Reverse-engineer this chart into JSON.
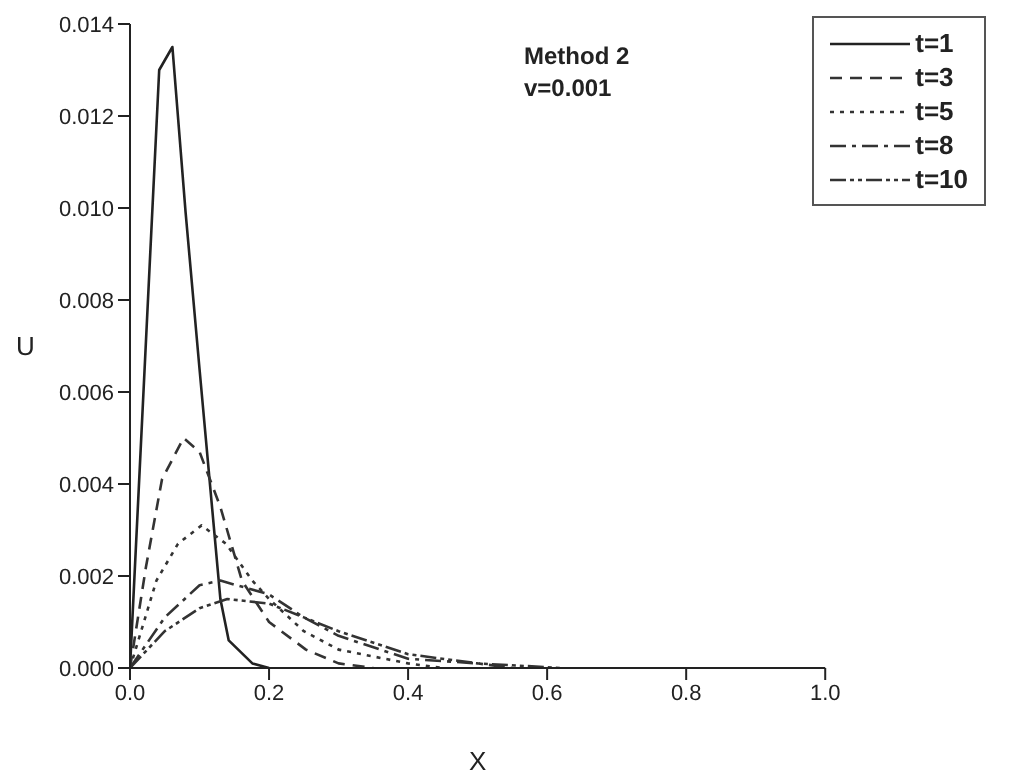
{
  "chart_data": {
    "type": "line",
    "xlabel": "X",
    "ylabel": "U",
    "annotations": [
      "Method 2",
      "v=0.001"
    ],
    "xlim": [
      0,
      1
    ],
    "xticks": [
      {
        "value": 0,
        "label": "0.0"
      },
      {
        "value": 0.2,
        "label": "0.2"
      },
      {
        "value": 0.4,
        "label": "0.4"
      },
      {
        "value": 0.6,
        "label": "0.6"
      },
      {
        "value": 0.8,
        "label": "0.8"
      },
      {
        "value": 1,
        "label": "1.0"
      }
    ],
    "ylim": [
      0,
      0.014
    ],
    "yticks": [
      {
        "value": 0,
        "label": "0.000"
      },
      {
        "value": 0.002,
        "label": "0.002"
      },
      {
        "value": 0.004,
        "label": "0.004"
      },
      {
        "value": 0.006,
        "label": "0.006"
      },
      {
        "value": 0.008,
        "label": "0.008"
      },
      {
        "value": 0.01,
        "label": "0.010"
      },
      {
        "value": 0.012,
        "label": "0.012"
      },
      {
        "value": 0.014,
        "label": "0.014"
      }
    ],
    "grid": false,
    "legend": "top right",
    "series": [
      {
        "name": "t=1",
        "color": "#222222",
        "line_style": "solid",
        "x": [
          0,
          0.042,
          0.061,
          0.08,
          0.1,
          0.13,
          0.142,
          0.176,
          0.2
        ],
        "values": [
          0,
          0.013,
          0.0135,
          0.0099,
          0.0065,
          0.0015,
          0.0006,
          0.0001,
          0
        ]
      },
      {
        "name": "t=3",
        "color": "#333333",
        "line_style": "dashed",
        "x": [
          0,
          0.023,
          0.046,
          0.077,
          0.1,
          0.13,
          0.161,
          0.2,
          0.253,
          0.3,
          0.35
        ],
        "values": [
          0,
          0.0022,
          0.0041,
          0.005,
          0.0047,
          0.0035,
          0.0019,
          0.001,
          0.0004,
          0.0001,
          0
        ]
      },
      {
        "name": "t=5",
        "color": "#333333",
        "line_style": "dotted",
        "x": [
          0,
          0.038,
          0.069,
          0.103,
          0.138,
          0.176,
          0.2,
          0.25,
          0.3,
          0.4,
          0.45
        ],
        "values": [
          0,
          0.0019,
          0.0027,
          0.0031,
          0.0027,
          0.0019,
          0.0015,
          0.0008,
          0.0004,
          0.0001,
          0
        ]
      },
      {
        "name": "t=8",
        "color": "#333333",
        "line_style": "dashdot",
        "x": [
          0,
          0.05,
          0.1,
          0.13,
          0.2,
          0.25,
          0.3,
          0.4,
          0.5,
          0.55
        ],
        "values": [
          0,
          0.0011,
          0.0018,
          0.0019,
          0.0016,
          0.0011,
          0.0007,
          0.0002,
          0.0001,
          0
        ]
      },
      {
        "name": "t=10",
        "color": "#333333",
        "line_style": "dashdotdot",
        "x": [
          0,
          0.05,
          0.1,
          0.14,
          0.2,
          0.25,
          0.3,
          0.4,
          0.5,
          0.62
        ],
        "values": [
          0,
          0.0008,
          0.0013,
          0.0015,
          0.0014,
          0.0011,
          0.0008,
          0.0003,
          0.0001,
          0
        ]
      }
    ]
  }
}
